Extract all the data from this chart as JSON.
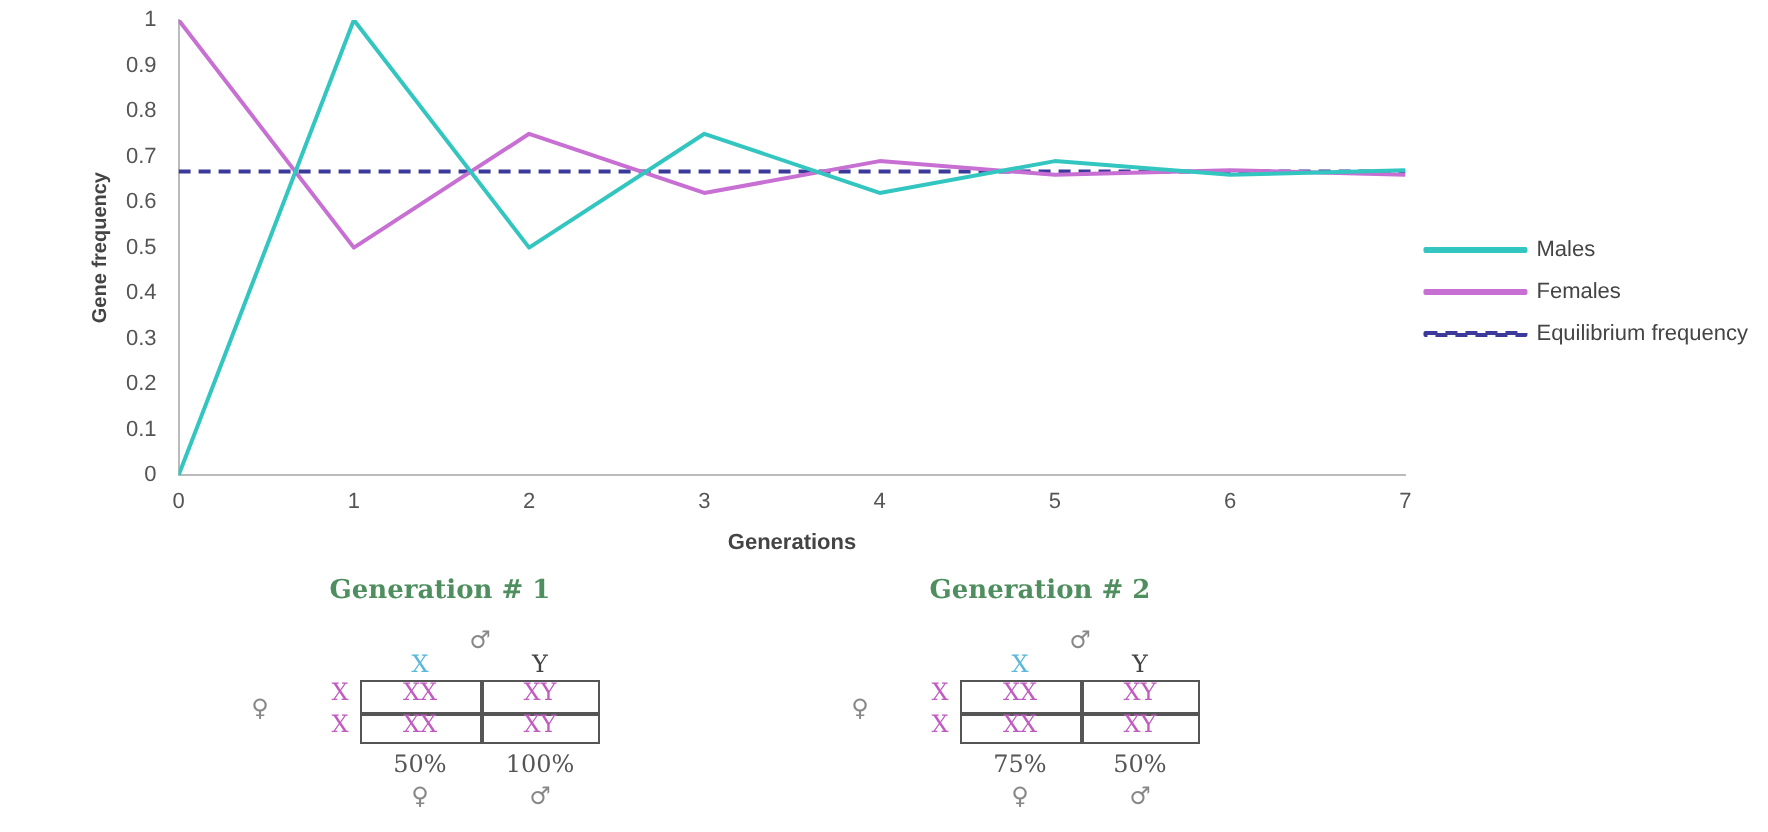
{
  "chart_data": [
    {
      "type": "line",
      "xlabel": "Generations",
      "ylabel": "Gene frequency",
      "x": [
        0,
        1,
        2,
        3,
        4,
        5,
        6,
        7
      ],
      "xlim": [
        0,
        7
      ],
      "xticks": [
        0,
        1,
        2,
        3,
        4,
        5,
        6,
        7
      ],
      "ylim": [
        0,
        1
      ],
      "yticks": [
        0,
        0.1,
        0.2,
        0.3,
        0.4,
        0.5,
        0.6,
        0.7,
        0.8,
        0.9,
        1
      ],
      "grid": false,
      "legend": "right",
      "marker": "none",
      "series": [
        {
          "name": "Males",
          "color": "#33c6c0",
          "values": [
            0,
            1,
            0.5,
            0.75,
            0.62,
            0.69,
            0.66,
            0.67
          ]
        },
        {
          "name": "Females",
          "color": "#c76fd2",
          "values": [
            1,
            0.5,
            0.75,
            0.62,
            0.69,
            0.66,
            0.67,
            0.66
          ]
        },
        {
          "name": "Equilibrium frequency",
          "color": "#3b3a9a",
          "line_style": "dashed",
          "values": [
            0.667,
            0.667,
            0.667,
            0.667,
            0.667,
            0.667,
            0.667,
            0.667
          ]
        }
      ]
    },
    {
      "type": "other",
      "title": "Generation # 1",
      "annotations": [
        "♂",
        "X",
        "Y",
        "♀",
        "X",
        "X",
        "XX",
        "XY",
        "XX",
        "XY",
        "50%",
        "100%",
        "♀",
        "♂"
      ]
    },
    {
      "type": "other",
      "title": "Generation # 2",
      "annotations": [
        "♂",
        "X",
        "Y",
        "♀",
        "X",
        "X",
        "XX",
        "XY",
        "XX",
        "XY",
        "75%",
        "50%",
        "♀",
        "♂"
      ]
    }
  ]
}
